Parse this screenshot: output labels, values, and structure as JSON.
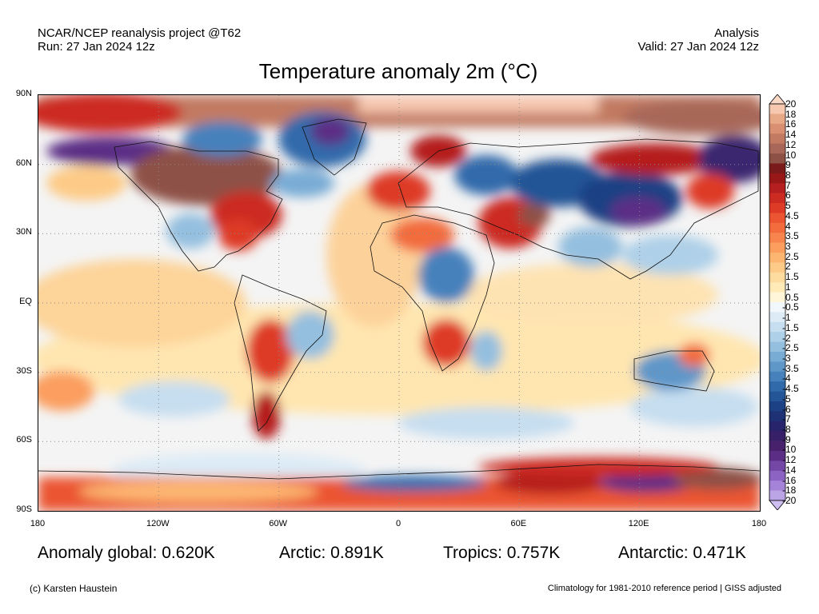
{
  "header": {
    "left_line1": "NCAR/NCEP reanalysis project @T62",
    "left_line2": "Run: 27 Jan 2024 12z",
    "right_line1": "Analysis",
    "right_line2": "Valid: 27 Jan 2024 12z"
  },
  "title": "Temperature anomaly 2m (°C)",
  "map": {
    "lat_ticks": [
      "90N",
      "60N",
      "30N",
      "EQ",
      "30S",
      "60S",
      "90S"
    ],
    "lon_ticks": [
      "180",
      "120W",
      "60W",
      "0",
      "60E",
      "120E",
      "180"
    ]
  },
  "colorbar": {
    "labels": [
      "20",
      "18",
      "16",
      "14",
      "12",
      "10",
      "9",
      "8",
      "7",
      "6",
      "5",
      "4.5",
      "4",
      "3.5",
      "3",
      "2.5",
      "2",
      "1.5",
      "1",
      "0.5",
      "-0.5",
      "-1",
      "-1.5",
      "-2",
      "-2.5",
      "-3",
      "-3.5",
      "-4",
      "-4.5",
      "-5",
      "-6",
      "-7",
      "-8",
      "-9",
      "-10",
      "-12",
      "-14",
      "-16",
      "-18",
      "-20"
    ],
    "colors": [
      "#f6c8b0",
      "#e8a988",
      "#d88f72",
      "#c27a62",
      "#a86758",
      "#8e5146",
      "#7a1a1a",
      "#981818",
      "#b51f1f",
      "#cc2b22",
      "#de3b26",
      "#eb5532",
      "#f26c3e",
      "#f7854d",
      "#fb9e5e",
      "#fdb672",
      "#fdcb87",
      "#fedc9f",
      "#ffeab8",
      "#fff5d8",
      "#f2f7fb",
      "#dcebf6",
      "#c6def0",
      "#aed0e8",
      "#94bfdf",
      "#79acd5",
      "#5f97c9",
      "#4681bc",
      "#306aab",
      "#245596",
      "#1c4184",
      "#1d3174",
      "#27246b",
      "#372067",
      "#47216b",
      "#5b2d85",
      "#7446a6",
      "#8c63c2",
      "#a583d8",
      "#bba5e6"
    ],
    "extend_top_color": "#f9d8c6",
    "extend_bottom_color": "#cdbdf0"
  },
  "stats": {
    "global": "Anomaly global: 0.620K",
    "arctic": "Arctic: 0.891K",
    "tropics": "Tropics: 0.757K",
    "antarctic": "Antarctic: 0.471K"
  },
  "footer": {
    "left": "(c) Karsten Haustein",
    "right": "Climatology for 1981-2010 reference period | GISS adjusted"
  }
}
